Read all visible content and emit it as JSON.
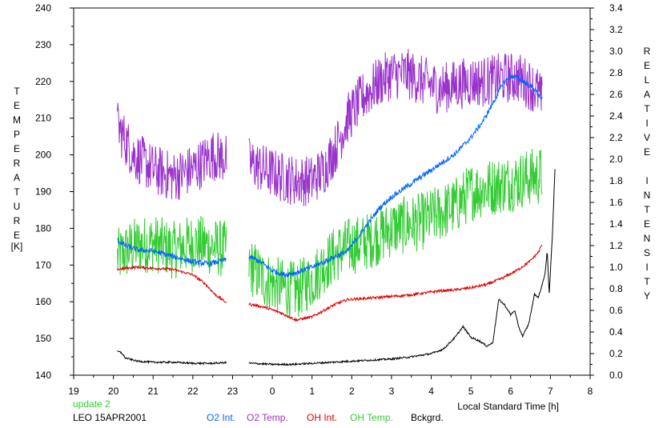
{
  "chart_data": {
    "type": "line",
    "xlabel": "Local Standard Time [h]",
    "ylabel_left": "TEMPERATURE",
    "ylabel_left_unit": "[K]",
    "ylabel_right": "RELATIVE INTENSITY",
    "x_tick_labels": [
      "19",
      "20",
      "21",
      "22",
      "23",
      "0",
      "1",
      "2",
      "3",
      "4",
      "5",
      "6",
      "7",
      "8"
    ],
    "xlim": [
      0,
      13
    ],
    "ylim_left": [
      140,
      240
    ],
    "yticks_left": [
      140,
      150,
      160,
      170,
      180,
      190,
      200,
      210,
      220,
      230,
      240
    ],
    "ylim_right": [
      0,
      3.4
    ],
    "yticks_right": [
      "0.0",
      "0.2",
      "0.4",
      "0.6",
      "0.8",
      "1.0",
      "1.2",
      "1.4",
      "1.6",
      "1.8",
      "2.0",
      "2.2",
      "2.4",
      "2.6",
      "2.8",
      "3.0",
      "3.2",
      "3.4"
    ],
    "gap": [
      3.85,
      4.4
    ],
    "grid": false,
    "annotations": {
      "update": "update 2",
      "station": "LEO 15APR2001"
    },
    "series": [
      {
        "name": "O2 Int.",
        "axis": "right",
        "color": "#0066ff",
        "noise": 0.025,
        "points": [
          [
            1.1,
            1.25
          ],
          [
            1.3,
            1.2
          ],
          [
            1.6,
            1.16
          ],
          [
            2.0,
            1.15
          ],
          [
            2.5,
            1.1
          ],
          [
            3.0,
            1.05
          ],
          [
            3.4,
            1.03
          ],
          [
            3.85,
            1.07
          ],
          [
            4.4,
            1.1
          ],
          [
            4.7,
            1.05
          ],
          [
            5.0,
            0.97
          ],
          [
            5.3,
            0.93
          ],
          [
            5.6,
            0.95
          ],
          [
            6.0,
            1.0
          ],
          [
            6.3,
            1.05
          ],
          [
            6.6,
            1.1
          ],
          [
            6.9,
            1.15
          ],
          [
            7.3,
            1.35
          ],
          [
            7.7,
            1.55
          ],
          [
            8.0,
            1.65
          ],
          [
            8.4,
            1.75
          ],
          [
            8.8,
            1.85
          ],
          [
            9.2,
            1.95
          ],
          [
            9.6,
            2.05
          ],
          [
            10.0,
            2.2
          ],
          [
            10.3,
            2.35
          ],
          [
            10.6,
            2.55
          ],
          [
            10.8,
            2.7
          ],
          [
            11.0,
            2.77
          ],
          [
            11.2,
            2.75
          ],
          [
            11.4,
            2.7
          ],
          [
            11.6,
            2.65
          ],
          [
            11.8,
            2.55
          ]
        ]
      },
      {
        "name": "O2 Temp.",
        "axis": "left",
        "color": "#9933cc",
        "noise": 7,
        "points": [
          [
            1.1,
            208
          ],
          [
            1.5,
            200
          ],
          [
            2.0,
            196
          ],
          [
            2.5,
            194
          ],
          [
            3.0,
            196
          ],
          [
            3.5,
            200
          ],
          [
            3.85,
            199
          ],
          [
            4.4,
            198
          ],
          [
            4.8,
            196
          ],
          [
            5.2,
            194
          ],
          [
            5.6,
            193
          ],
          [
            6.0,
            193
          ],
          [
            6.3,
            196
          ],
          [
            6.6,
            202
          ],
          [
            6.9,
            210
          ],
          [
            7.3,
            216
          ],
          [
            7.7,
            220
          ],
          [
            8.0,
            222
          ],
          [
            8.4,
            222
          ],
          [
            8.8,
            220
          ],
          [
            9.2,
            218
          ],
          [
            9.6,
            219
          ],
          [
            10.0,
            220
          ],
          [
            10.4,
            220
          ],
          [
            10.8,
            221
          ],
          [
            11.2,
            221
          ],
          [
            11.5,
            219
          ],
          [
            11.7,
            217
          ],
          [
            11.8,
            214
          ]
        ]
      },
      {
        "name": "OH Int.",
        "axis": "right",
        "color": "#dd0000",
        "noise": 0.012,
        "points": [
          [
            1.1,
            0.98
          ],
          [
            1.3,
            0.99
          ],
          [
            1.6,
            1.0
          ],
          [
            2.0,
            0.99
          ],
          [
            2.5,
            0.98
          ],
          [
            3.0,
            0.93
          ],
          [
            3.3,
            0.85
          ],
          [
            3.55,
            0.75
          ],
          [
            3.85,
            0.67
          ],
          [
            4.4,
            0.66
          ],
          [
            4.8,
            0.63
          ],
          [
            5.2,
            0.58
          ],
          [
            5.6,
            0.51
          ],
          [
            6.0,
            0.54
          ],
          [
            6.3,
            0.6
          ],
          [
            6.6,
            0.66
          ],
          [
            6.9,
            0.7
          ],
          [
            7.3,
            0.71
          ],
          [
            7.7,
            0.72
          ],
          [
            8.0,
            0.73
          ],
          [
            8.4,
            0.74
          ],
          [
            8.8,
            0.76
          ],
          [
            9.2,
            0.78
          ],
          [
            9.6,
            0.79
          ],
          [
            10.0,
            0.81
          ],
          [
            10.4,
            0.84
          ],
          [
            10.8,
            0.9
          ],
          [
            11.2,
            0.98
          ],
          [
            11.5,
            1.06
          ],
          [
            11.7,
            1.14
          ],
          [
            11.8,
            1.22
          ]
        ]
      },
      {
        "name": "OH Temp.",
        "axis": "left",
        "color": "#33cc33",
        "noise": 8,
        "points": [
          [
            1.1,
            172
          ],
          [
            1.5,
            175
          ],
          [
            2.0,
            176
          ],
          [
            2.5,
            174
          ],
          [
            3.0,
            176
          ],
          [
            3.5,
            175
          ],
          [
            3.85,
            174
          ],
          [
            4.4,
            170
          ],
          [
            4.8,
            166
          ],
          [
            5.2,
            164
          ],
          [
            5.6,
            163
          ],
          [
            6.0,
            166
          ],
          [
            6.3,
            170
          ],
          [
            6.6,
            173
          ],
          [
            6.9,
            175
          ],
          [
            7.3,
            176
          ],
          [
            7.7,
            178
          ],
          [
            8.0,
            180
          ],
          [
            8.4,
            181
          ],
          [
            8.8,
            182
          ],
          [
            9.2,
            184
          ],
          [
            9.6,
            186
          ],
          [
            10.0,
            190
          ],
          [
            10.4,
            191
          ],
          [
            10.8,
            192
          ],
          [
            11.2,
            193
          ],
          [
            11.5,
            194
          ],
          [
            11.7,
            194
          ],
          [
            11.8,
            195
          ]
        ]
      },
      {
        "name": "Bckgrd.",
        "axis": "right",
        "color": "#000000",
        "noise": 0.008,
        "points": [
          [
            1.1,
            0.22
          ],
          [
            1.2,
            0.21
          ],
          [
            1.3,
            0.16
          ],
          [
            1.6,
            0.13
          ],
          [
            2.0,
            0.12
          ],
          [
            2.5,
            0.12
          ],
          [
            3.0,
            0.11
          ],
          [
            3.5,
            0.11
          ],
          [
            4.0,
            0.12
          ],
          [
            4.5,
            0.11
          ],
          [
            5.0,
            0.1
          ],
          [
            5.5,
            0.1
          ],
          [
            6.0,
            0.11
          ],
          [
            6.5,
            0.12
          ],
          [
            7.0,
            0.13
          ],
          [
            7.5,
            0.14
          ],
          [
            8.0,
            0.15
          ],
          [
            8.5,
            0.17
          ],
          [
            9.0,
            0.2
          ],
          [
            9.3,
            0.24
          ],
          [
            9.6,
            0.35
          ],
          [
            9.8,
            0.45
          ],
          [
            10.0,
            0.35
          ],
          [
            10.2,
            0.32
          ],
          [
            10.4,
            0.27
          ],
          [
            10.55,
            0.3
          ],
          [
            10.7,
            0.7
          ],
          [
            10.85,
            0.65
          ],
          [
            11.0,
            0.56
          ],
          [
            11.1,
            0.6
          ],
          [
            11.2,
            0.45
          ],
          [
            11.3,
            0.36
          ],
          [
            11.45,
            0.47
          ],
          [
            11.6,
            0.75
          ],
          [
            11.7,
            0.72
          ],
          [
            11.8,
            0.85
          ],
          [
            11.87,
            0.95
          ],
          [
            11.92,
            1.15
          ],
          [
            11.97,
            0.75
          ],
          [
            12.05,
            1.3
          ],
          [
            12.12,
            1.95
          ]
        ]
      }
    ]
  }
}
